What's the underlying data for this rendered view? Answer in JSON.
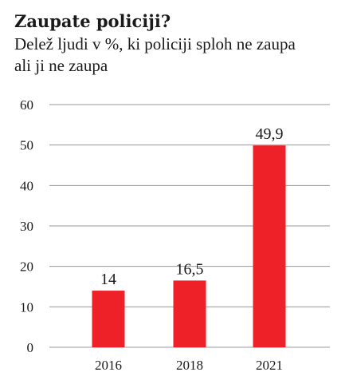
{
  "chart_data": {
    "type": "bar",
    "title": "Zaupate policiji?",
    "subtitle": "Delež ljudi v %, ki policiji sploh ne zaupa ali ji ne zaupa",
    "categories": [
      "2016",
      "2018",
      "2021"
    ],
    "values": [
      14,
      16.5,
      49.9
    ],
    "value_labels": [
      "14",
      "16,5",
      "49,9"
    ],
    "y_ticks": [
      0,
      10,
      20,
      30,
      40,
      50,
      60
    ],
    "ylim": [
      0,
      60
    ],
    "grid": true,
    "bar_color": "#ee2128",
    "grid_color": "#9a9a9a",
    "legend": "none"
  }
}
